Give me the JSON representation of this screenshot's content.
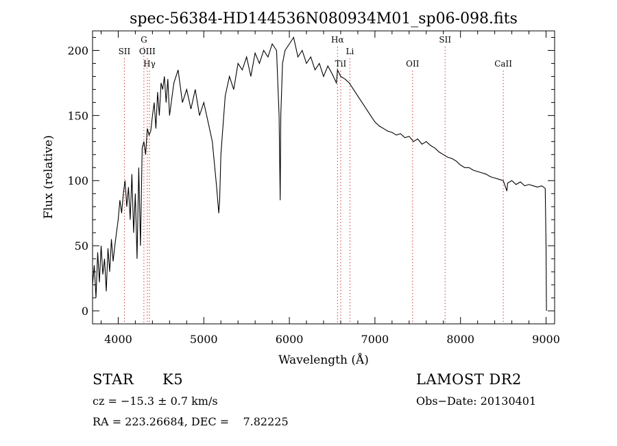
{
  "chart_data": {
    "type": "line",
    "title": "spec-56384-HD144536N080934M01_sp06-098.fits",
    "xlabel": "Wavelength (Å)",
    "ylabel": "Flux (relative)",
    "xlim": [
      3700,
      9100
    ],
    "ylim": [
      -10,
      215
    ],
    "xticks": [
      4000,
      5000,
      6000,
      7000,
      8000,
      9000
    ],
    "yticks": [
      0,
      50,
      100,
      150,
      200
    ],
    "grid": false,
    "line_color": "#000000",
    "marker_color": "#cc3333",
    "series": [
      {
        "x": [
          3700,
          3720,
          3740,
          3760,
          3780,
          3800,
          3820,
          3840,
          3860,
          3880,
          3900,
          3920,
          3940,
          3960,
          3980,
          4000,
          4020,
          4040,
          4060,
          4080,
          4100,
          4120,
          4140,
          4160,
          4180,
          4200,
          4220,
          4240,
          4260,
          4280,
          4300,
          4320,
          4340,
          4360,
          4380,
          4400,
          4420,
          4440,
          4460,
          4480,
          4500,
          4520,
          4540,
          4560,
          4580,
          4600,
          4650,
          4700,
          4750,
          4800,
          4850,
          4900,
          4950,
          5000,
          5050,
          5100,
          5150,
          5175,
          5185,
          5200,
          5250,
          5300,
          5350,
          5400,
          5450,
          5500,
          5550,
          5600,
          5650,
          5700,
          5750,
          5800,
          5850,
          5880,
          5893,
          5900,
          5920,
          5950,
          6000,
          6050,
          6100,
          6150,
          6200,
          6250,
          6300,
          6350,
          6400,
          6450,
          6500,
          6550,
          6563,
          6600,
          6650,
          6700,
          6750,
          6800,
          6850,
          6900,
          6950,
          7000,
          7050,
          7100,
          7150,
          7200,
          7250,
          7300,
          7350,
          7400,
          7450,
          7500,
          7550,
          7600,
          7650,
          7700,
          7750,
          7800,
          7850,
          7900,
          7950,
          8000,
          8050,
          8100,
          8150,
          8200,
          8250,
          8300,
          8350,
          8400,
          8450,
          8500,
          8542,
          8550,
          8600,
          8650,
          8700,
          8750,
          8800,
          8850,
          8900,
          8950,
          8990,
          9000,
          9005
        ],
        "y": [
          20,
          35,
          10,
          45,
          22,
          50,
          28,
          40,
          15,
          48,
          30,
          55,
          38,
          50,
          60,
          70,
          85,
          75,
          90,
          100,
          80,
          95,
          70,
          105,
          60,
          90,
          40,
          110,
          50,
          125,
          130,
          120,
          140,
          135,
          138,
          150,
          160,
          140,
          168,
          150,
          175,
          170,
          180,
          160,
          178,
          150,
          175,
          185,
          160,
          170,
          155,
          170,
          150,
          160,
          145,
          130,
          95,
          75,
          85,
          120,
          165,
          180,
          170,
          190,
          185,
          195,
          180,
          198,
          190,
          200,
          195,
          205,
          200,
          150,
          85,
          150,
          190,
          200,
          205,
          210,
          195,
          200,
          190,
          195,
          185,
          190,
          180,
          188,
          182,
          175,
          185,
          180,
          178,
          175,
          170,
          165,
          160,
          155,
          150,
          145,
          142,
          140,
          138,
          137,
          135,
          136,
          133,
          134,
          130,
          132,
          128,
          130,
          127,
          125,
          122,
          120,
          118,
          117,
          115,
          112,
          110,
          110,
          108,
          107,
          106,
          105,
          103,
          102,
          101,
          100,
          92,
          98,
          100,
          97,
          99,
          96,
          97,
          96,
          95,
          96,
          94,
          50,
          0
        ]
      }
    ],
    "line_markers": [
      {
        "label": "SII",
        "x": 4072,
        "row": 1
      },
      {
        "label": "G",
        "x": 4300,
        "row": 0
      },
      {
        "label": "OIII",
        "x": 4340,
        "row": 1
      },
      {
        "label": "Hγ",
        "x": 4365,
        "row": 2
      },
      {
        "label": "Hα",
        "x": 6563,
        "row": 0
      },
      {
        "label": "Li",
        "x": 6708,
        "row": 1
      },
      {
        "label": "TiI",
        "x": 6600,
        "row": 2
      },
      {
        "label": "OII",
        "x": 7440,
        "row": 2
      },
      {
        "label": "SII",
        "x": 7820,
        "row": 0
      },
      {
        "label": "CaII",
        "x": 8500,
        "row": 2
      }
    ]
  },
  "info": {
    "object_class": "STAR",
    "subclass": "K5",
    "survey": "LAMOST DR2",
    "redshift_line": "cz = −15.3 ± 0.7 km/s",
    "obs_date_line": "Obs−Date: 20130401",
    "coords_line": "RA = 223.26684, DEC =    7.82225"
  }
}
